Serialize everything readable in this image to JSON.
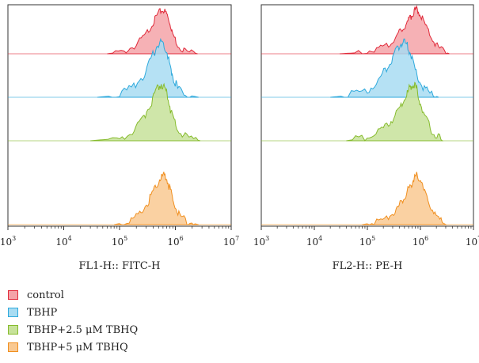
{
  "chart_data": [
    {
      "type": "area",
      "panel": "left",
      "xlabel": "FL1-H:: FITC-H",
      "xscale": "log",
      "xlim": [
        1000,
        10000000
      ],
      "ticks": [
        {
          "base": "10",
          "exp": "3"
        },
        {
          "base": "10",
          "exp": "4"
        },
        {
          "base": "10",
          "exp": "5"
        },
        {
          "base": "10",
          "exp": "6"
        },
        {
          "base": "10",
          "exp": "7"
        }
      ],
      "layout": "offset-overlay",
      "series": [
        {
          "name": "control",
          "fill": "#f4a3a8",
          "stroke": "#e02a3a",
          "x": [
            60000,
            120000,
            200000,
            300000,
            400000,
            500000,
            600000,
            700000,
            800000,
            900000,
            1100000,
            1500000,
            2500000
          ],
          "y": [
            0.0,
            0.05,
            0.2,
            0.45,
            0.7,
            0.92,
            1.0,
            0.9,
            0.7,
            0.45,
            0.2,
            0.06,
            0.0
          ]
        },
        {
          "name": "TBHP",
          "fill": "#a8dcf2",
          "stroke": "#2ea9dc",
          "x": [
            40000,
            100000,
            180000,
            280000,
            380000,
            480000,
            580000,
            680000,
            780000,
            900000,
            1100000,
            1500000,
            2600000
          ],
          "y": [
            0.0,
            0.04,
            0.18,
            0.42,
            0.72,
            0.95,
            1.0,
            0.88,
            0.62,
            0.38,
            0.16,
            0.05,
            0.0
          ]
        },
        {
          "name": "TBHP+2.5 μM TBHQ",
          "fill": "#c7e29a",
          "stroke": "#86bb2d",
          "x": [
            30000,
            90000,
            170000,
            260000,
            360000,
            460000,
            560000,
            660000,
            760000,
            880000,
            1100000,
            1600000,
            2800000
          ],
          "y": [
            0.0,
            0.04,
            0.15,
            0.38,
            0.65,
            0.9,
            1.0,
            0.92,
            0.7,
            0.42,
            0.18,
            0.06,
            0.0
          ]
        },
        {
          "name": "TBHP+5 μM TBHQ",
          "fill": "#f9c992",
          "stroke": "#f08f1f",
          "x": [
            80000,
            150000,
            230000,
            320000,
            420000,
            520000,
            620000,
            720000,
            820000,
            950000,
            1200000,
            1700000,
            2600000
          ],
          "y": [
            0.0,
            0.06,
            0.2,
            0.45,
            0.72,
            0.92,
            1.0,
            0.9,
            0.68,
            0.42,
            0.18,
            0.05,
            0.0
          ]
        }
      ]
    },
    {
      "type": "area",
      "panel": "right",
      "xlabel": "FL2-H:: PE-H",
      "xscale": "log",
      "xlim": [
        1000,
        10000000
      ],
      "ticks": [
        {
          "base": "10",
          "exp": "3"
        },
        {
          "base": "10",
          "exp": "4"
        },
        {
          "base": "10",
          "exp": "5"
        },
        {
          "base": "10",
          "exp": "6"
        },
        {
          "base": "10",
          "exp": "7"
        }
      ],
      "layout": "offset-overlay",
      "series": [
        {
          "name": "control",
          "fill": "#f4a3a8",
          "stroke": "#e02a3a",
          "x": [
            30000,
            80000,
            150000,
            250000,
            350000,
            450000,
            550000,
            650000,
            750000,
            850000,
            1000000,
            1300000,
            1700000,
            2300000,
            3500000
          ],
          "y": [
            0.0,
            0.03,
            0.1,
            0.22,
            0.38,
            0.55,
            0.7,
            0.82,
            0.95,
            1.0,
            0.9,
            0.6,
            0.3,
            0.1,
            0.0
          ]
        },
        {
          "name": "TBHP",
          "fill": "#a8dcf2",
          "stroke": "#2ea9dc",
          "x": [
            20000,
            50000,
            100000,
            160000,
            230000,
            300000,
            380000,
            460000,
            550000,
            650000,
            800000,
            1000000,
            1400000,
            2200000
          ],
          "y": [
            0.0,
            0.04,
            0.12,
            0.3,
            0.52,
            0.72,
            0.9,
            1.0,
            0.95,
            0.78,
            0.5,
            0.25,
            0.08,
            0.0
          ]
        },
        {
          "name": "TBHP+2.5 μM TBHQ",
          "fill": "#c7e29a",
          "stroke": "#86bb2d",
          "x": [
            40000,
            90000,
            160000,
            250000,
            350000,
            450000,
            550000,
            650000,
            750000,
            850000,
            1000000,
            1300000,
            1800000,
            2600000
          ],
          "y": [
            0.0,
            0.05,
            0.15,
            0.3,
            0.48,
            0.65,
            0.8,
            0.95,
            1.0,
            0.9,
            0.65,
            0.35,
            0.12,
            0.0
          ]
        },
        {
          "name": "TBHP+5 μM TBHQ",
          "fill": "#f9c992",
          "stroke": "#f08f1f",
          "x": [
            80000,
            150000,
            250000,
            350000,
            450000,
            550000,
            650000,
            750000,
            850000,
            1000000,
            1200000,
            1600000,
            2200000,
            3000000
          ],
          "y": [
            0.0,
            0.05,
            0.15,
            0.3,
            0.48,
            0.65,
            0.8,
            0.92,
            1.0,
            0.92,
            0.65,
            0.35,
            0.1,
            0.0
          ]
        }
      ]
    }
  ],
  "legend": {
    "items": [
      {
        "label": "control",
        "fill": "#f4a3a8",
        "stroke": "#e02a3a"
      },
      {
        "label": "TBHP",
        "fill": "#a8dcf2",
        "stroke": "#2ea9dc"
      },
      {
        "label": "TBHP+2.5 μM TBHQ",
        "fill": "#c7e29a",
        "stroke": "#86bb2d"
      },
      {
        "label": "TBHP+5 μM TBHQ",
        "fill": "#f9c992",
        "stroke": "#f08f1f"
      }
    ]
  }
}
